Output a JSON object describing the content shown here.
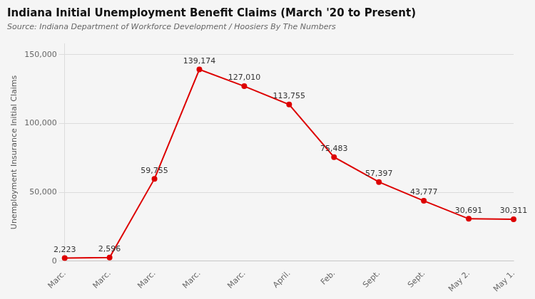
{
  "chart_data": {
    "type": "line",
    "title": "Indiana Initial Unemployment Benefit Claims (March '20 to Present)",
    "subtitle": "Source: Indiana Department of Workforce Development / Hoosiers By The Numbers",
    "ylabel": "Unemployment Insurance Initial Claims",
    "categories": [
      "Marc.",
      "Marc.",
      "Marc.",
      "Marc.",
      "Marc.",
      "April.",
      "Feb.",
      "Sept.",
      "Sept.",
      "May 2.",
      "May 1."
    ],
    "values": [
      2223,
      2596,
      59755,
      139174,
      127010,
      113755,
      75483,
      57397,
      43777,
      30691,
      30311
    ],
    "value_labels": [
      "2,223",
      "2,596",
      "59,755",
      "139,174",
      "127,010",
      "113,755",
      "75,483",
      "57,397",
      "43,777",
      "30,691",
      "30,311"
    ],
    "data_labels": true,
    "color": "#dd0000",
    "marker": "circle",
    "ylim": [
      0,
      158000
    ],
    "yticks": [
      0,
      {
        "value": 50000,
        "label": "50,000"
      },
      {
        "value": 100000,
        "label": "100,000"
      },
      {
        "value": 150000,
        "label": "150,000"
      }
    ],
    "grid": true
  }
}
